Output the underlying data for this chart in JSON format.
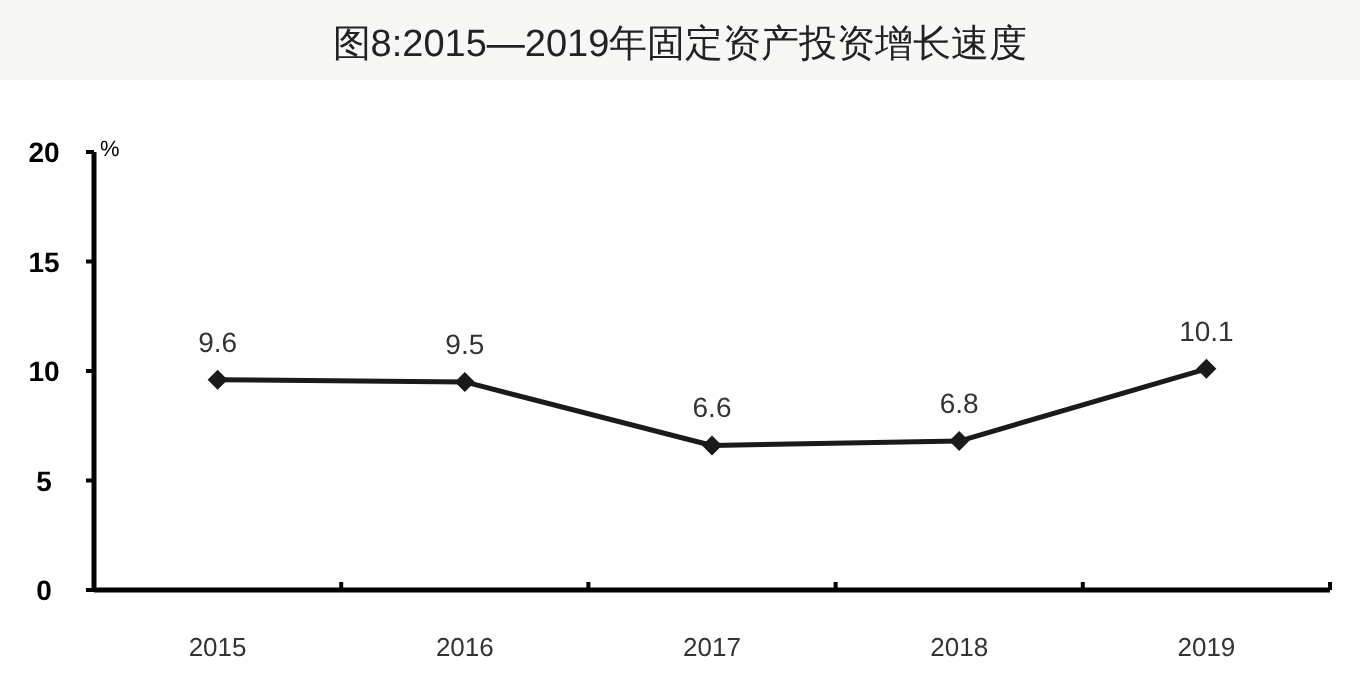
{
  "chart_data": {
    "type": "line",
    "title": "图8:2015—2019年固定资产投资增长速度",
    "ylabel": "%",
    "categories": [
      "2015",
      "2016",
      "2017",
      "2018",
      "2019"
    ],
    "series": [
      {
        "color": "#1a1a1a",
        "values": [
          9.6,
          9.5,
          6.6,
          6.8,
          10.1
        ]
      }
    ],
    "ylim": [
      0,
      20
    ],
    "yticks": [
      0,
      5,
      10,
      15,
      20
    ],
    "grid": false,
    "marker": "diamond",
    "line_style": "solid",
    "data_labels": true
  }
}
